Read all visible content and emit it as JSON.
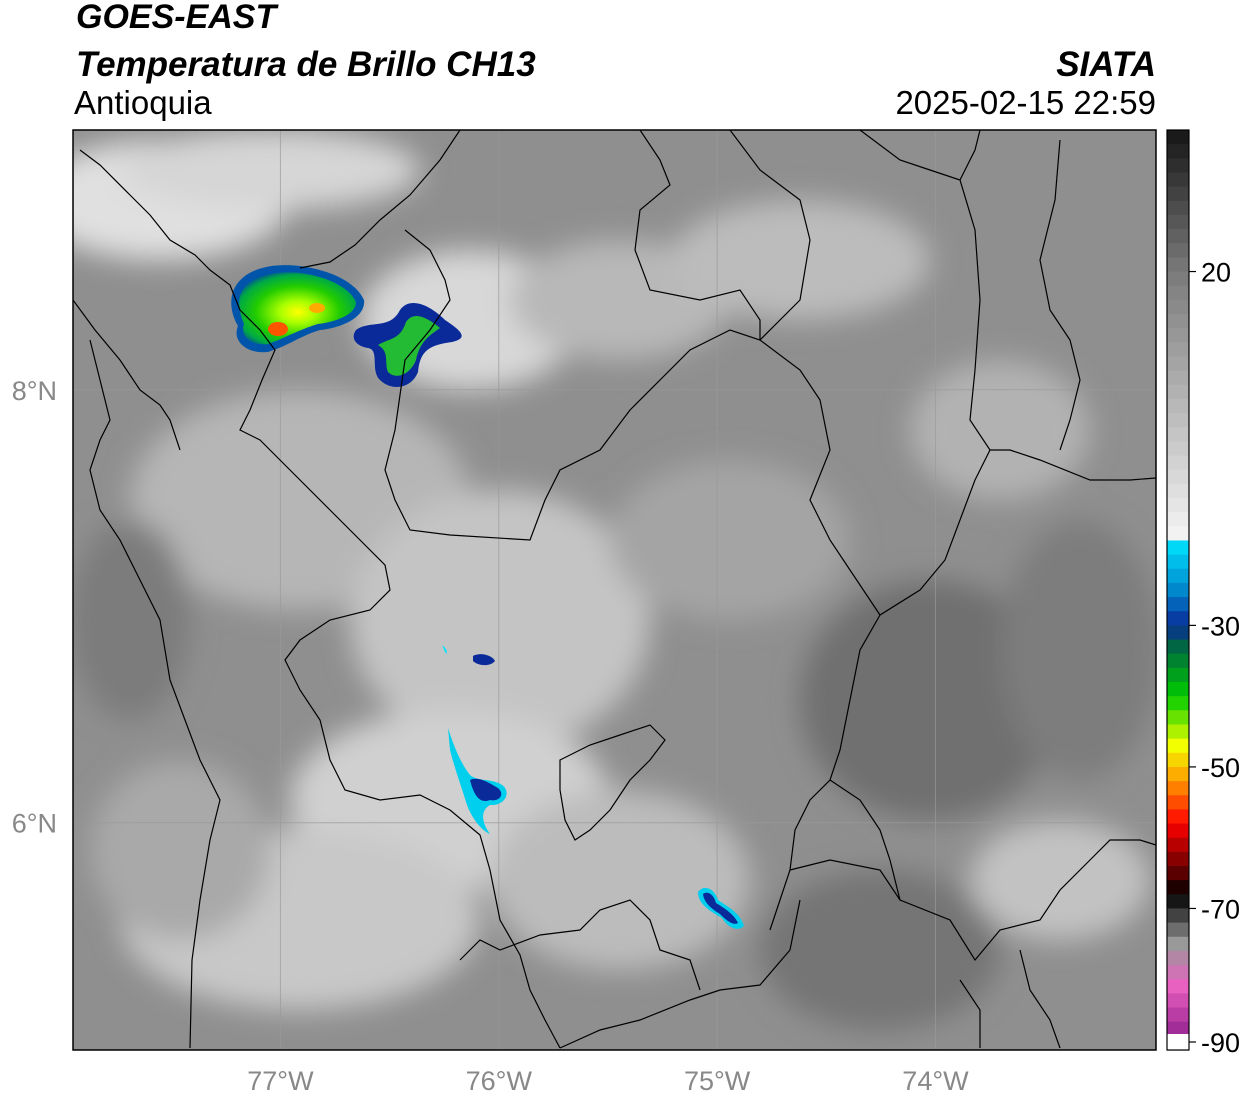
{
  "header": {
    "satellite": "GOES-EAST",
    "product": "Temperatura de Brillo CH13",
    "region": "Antioquia",
    "organization": "SIATA",
    "datetime": "2025-02-15 22:59"
  },
  "map": {
    "lon_range": [
      -77.95,
      -72.99
    ],
    "lat_range": [
      4.95,
      9.2
    ],
    "lon_ticks": [
      {
        "value": -77,
        "label": "77°W"
      },
      {
        "value": -76,
        "label": "76°W"
      },
      {
        "value": -75,
        "label": "75°W"
      },
      {
        "value": -74,
        "label": "74°W"
      }
    ],
    "lat_ticks": [
      {
        "value": 8,
        "label": "8°N"
      },
      {
        "value": 6,
        "label": "6°N"
      }
    ],
    "gridlines": true
  },
  "colorbar": {
    "range": [
      -90,
      40
    ],
    "ticks": [
      {
        "value": 20,
        "label": "20"
      },
      {
        "value": -30,
        "label": "-30"
      },
      {
        "value": -50,
        "label": "-50"
      },
      {
        "value": -70,
        "label": "-70"
      },
      {
        "value": -90,
        "label": "-90"
      }
    ],
    "colors": {
      "warm_dark": "#151515",
      "warm_mid": "#7a7a7a",
      "warm_light": "#f2f2f2",
      "cyan": "#00e5ff",
      "blue": "#0a2a9a",
      "green": "#00cc00",
      "yellow": "#f2ff00",
      "orange": "#ff9900",
      "red": "#ff0000",
      "dark_red": "#5a0000",
      "black": "#000000",
      "gray": "#999999",
      "pink": "#e860c0",
      "purple": "#8a1a8a"
    }
  }
}
